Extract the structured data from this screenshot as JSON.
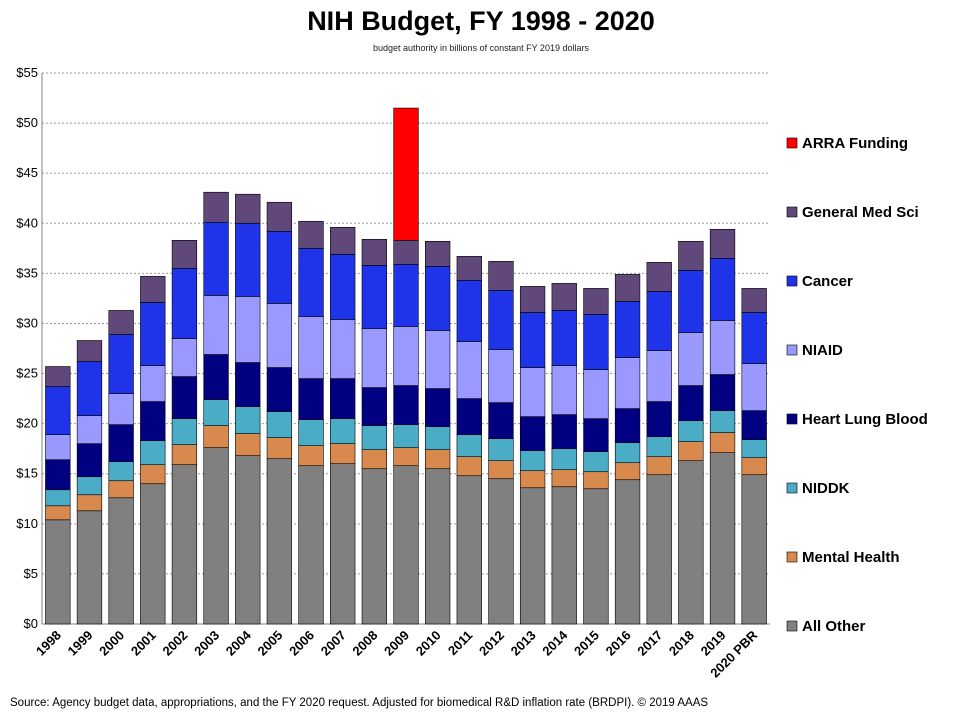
{
  "chart_data": {
    "type": "bar",
    "stacked": true,
    "title": "NIH Budget, FY 1998 - 2020",
    "subtitle": "budget authority in billions of constant FY 2019 dollars",
    "source": "Source: Agency budget data, appropriations, and the FY 2020 request. Adjusted for biomedical R&D inflation rate (BRDPI). © 2019 AAAS",
    "ylim": [
      0,
      55
    ],
    "yticks": [
      0,
      5,
      10,
      15,
      20,
      25,
      30,
      35,
      40,
      45,
      50,
      55
    ],
    "ytick_labels": [
      "$0",
      "$5",
      "$10",
      "$15",
      "$20",
      "$25",
      "$30",
      "$35",
      "$40",
      "$45",
      "$50",
      "$55"
    ],
    "grid": true,
    "legend_position": "right",
    "categories": [
      "1998",
      "1999",
      "2000",
      "2001",
      "2002",
      "2003",
      "2004",
      "2005",
      "2006",
      "2007",
      "2008",
      "2009",
      "2010",
      "2011",
      "2012",
      "2013",
      "2014",
      "2015",
      "2016",
      "2017",
      "2018",
      "2019",
      "2020 PBR"
    ],
    "series": [
      {
        "name": "All Other",
        "color": "#808080",
        "values": [
          10.4,
          11.3,
          12.6,
          14.0,
          15.9,
          17.6,
          16.8,
          16.5,
          15.8,
          16.0,
          15.5,
          15.8,
          15.5,
          14.8,
          14.5,
          13.6,
          13.7,
          13.5,
          14.4,
          14.9,
          16.3,
          17.1,
          14.9
        ]
      },
      {
        "name": "Mental Health",
        "color": "#d88a4e",
        "values": [
          1.4,
          1.6,
          1.7,
          1.9,
          2.0,
          2.2,
          2.2,
          2.1,
          2.0,
          2.0,
          1.9,
          1.8,
          1.9,
          1.9,
          1.8,
          1.7,
          1.7,
          1.7,
          1.7,
          1.8,
          1.9,
          2.0,
          1.7
        ]
      },
      {
        "name": "NIDDK",
        "color": "#4bacc6",
        "values": [
          1.6,
          1.8,
          1.9,
          2.4,
          2.6,
          2.6,
          2.7,
          2.6,
          2.6,
          2.5,
          2.4,
          2.3,
          2.3,
          2.2,
          2.2,
          2.0,
          2.1,
          2.0,
          2.0,
          2.0,
          2.1,
          2.2,
          1.8
        ]
      },
      {
        "name": "Heart Lung Blood",
        "color": "#000080",
        "values": [
          3.0,
          3.3,
          3.7,
          3.9,
          4.2,
          4.5,
          4.4,
          4.4,
          4.1,
          4.0,
          3.8,
          3.9,
          3.8,
          3.6,
          3.6,
          3.4,
          3.4,
          3.3,
          3.4,
          3.5,
          3.5,
          3.6,
          2.9
        ]
      },
      {
        "name": "NIAID",
        "color": "#9999ff",
        "values": [
          2.5,
          2.8,
          3.1,
          3.6,
          3.8,
          5.9,
          6.6,
          6.4,
          6.2,
          5.9,
          5.9,
          5.9,
          5.8,
          5.7,
          5.3,
          4.9,
          4.9,
          4.9,
          5.1,
          5.1,
          5.3,
          5.4,
          4.7
        ]
      },
      {
        "name": "Cancer",
        "color": "#1f34e8",
        "values": [
          4.8,
          5.4,
          5.9,
          6.3,
          7.0,
          7.3,
          7.3,
          7.2,
          6.8,
          6.5,
          6.3,
          6.2,
          6.4,
          6.1,
          5.9,
          5.5,
          5.5,
          5.5,
          5.6,
          5.9,
          6.2,
          6.2,
          5.1
        ]
      },
      {
        "name": "General Med Sci",
        "color": "#60497a",
        "values": [
          2.0,
          2.1,
          2.4,
          2.6,
          2.8,
          3.0,
          2.9,
          2.9,
          2.7,
          2.7,
          2.6,
          2.4,
          2.5,
          2.4,
          2.9,
          2.6,
          2.7,
          2.6,
          2.7,
          2.9,
          2.9,
          2.9,
          2.4
        ]
      },
      {
        "name": "ARRA Funding",
        "color": "#ff0000",
        "values": [
          0,
          0,
          0,
          0,
          0,
          0,
          0,
          0,
          0,
          0,
          0,
          13.2,
          0,
          0,
          0,
          0,
          0,
          0,
          0,
          0,
          0,
          0,
          0
        ]
      }
    ]
  }
}
